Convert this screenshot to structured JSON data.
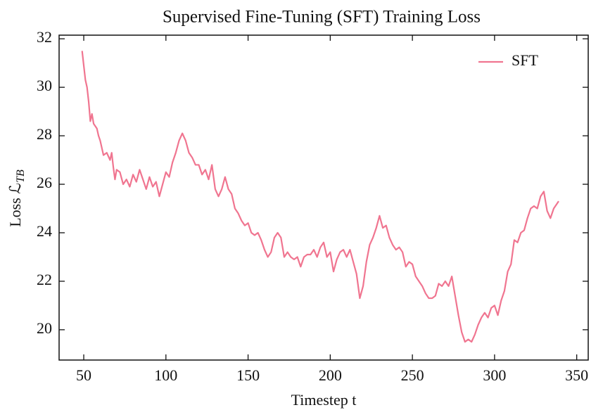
{
  "chart_data": {
    "type": "line",
    "title": "Supervised Fine-Tuning (SFT) Training Loss",
    "xlabel": "Timestep t",
    "ylabel": "Loss ℒ",
    "ylabel_subscript": "TB",
    "x": [
      49,
      50,
      51,
      52,
      53,
      54,
      55,
      56,
      58,
      59,
      60,
      61,
      62,
      64,
      66,
      67,
      68,
      69,
      70,
      72,
      74,
      76,
      78,
      80,
      82,
      84,
      86,
      88,
      90,
      92,
      94,
      96,
      98,
      100,
      102,
      104,
      106,
      108,
      110,
      112,
      114,
      116,
      118,
      120,
      122,
      124,
      126,
      128,
      130,
      132,
      134,
      136,
      138,
      140,
      142,
      144,
      146,
      148,
      150,
      152,
      154,
      156,
      158,
      160,
      162,
      164,
      166,
      168,
      170,
      172,
      174,
      176,
      178,
      180,
      182,
      184,
      186,
      188,
      190,
      192,
      194,
      196,
      198,
      200,
      202,
      204,
      206,
      208,
      210,
      212,
      214,
      216,
      218,
      220,
      222,
      224,
      226,
      228,
      230,
      232,
      234,
      236,
      238,
      240,
      242,
      244,
      246,
      248,
      250,
      252,
      254,
      256,
      258,
      260,
      262,
      264,
      266,
      268,
      270,
      272,
      274,
      276,
      278,
      280,
      282,
      284,
      286,
      288,
      290,
      292,
      294,
      296,
      298,
      300,
      302,
      304,
      306,
      308,
      310,
      312,
      314,
      316,
      318,
      320,
      322,
      324,
      326,
      328,
      330,
      332,
      334,
      336,
      338,
      339
    ],
    "series": [
      {
        "name": "SFT",
        "color": "#f07590",
        "values": [
          31.5,
          30.9,
          30.3,
          30.0,
          29.4,
          28.6,
          28.9,
          28.5,
          28.3,
          28.0,
          27.8,
          27.5,
          27.2,
          27.3,
          27.0,
          27.3,
          26.7,
          26.2,
          26.6,
          26.5,
          26.0,
          26.2,
          25.9,
          26.4,
          26.1,
          26.6,
          26.2,
          25.8,
          26.3,
          25.9,
          26.1,
          25.5,
          26.0,
          26.5,
          26.3,
          26.9,
          27.3,
          27.8,
          28.1,
          27.8,
          27.3,
          27.1,
          26.8,
          26.8,
          26.4,
          26.6,
          26.2,
          26.8,
          25.8,
          25.5,
          25.8,
          26.3,
          25.8,
          25.6,
          25.0,
          24.8,
          24.5,
          24.3,
          24.4,
          24.0,
          23.9,
          24.0,
          23.7,
          23.3,
          23.0,
          23.2,
          23.8,
          24.0,
          23.8,
          23.0,
          23.2,
          23.0,
          22.9,
          23.0,
          22.6,
          23.0,
          23.1,
          23.1,
          23.3,
          23.0,
          23.4,
          23.6,
          23.0,
          23.2,
          22.4,
          22.9,
          23.2,
          23.3,
          23.0,
          23.3,
          22.8,
          22.3,
          21.3,
          21.8,
          22.8,
          23.5,
          23.8,
          24.2,
          24.7,
          24.2,
          24.3,
          23.8,
          23.5,
          23.3,
          23.4,
          23.2,
          22.6,
          22.8,
          22.7,
          22.2,
          22.0,
          21.8,
          21.5,
          21.3,
          21.3,
          21.4,
          21.9,
          21.8,
          22.0,
          21.8,
          22.2,
          21.4,
          20.6,
          19.9,
          19.5,
          19.6,
          19.5,
          19.8,
          20.2,
          20.5,
          20.7,
          20.5,
          20.9,
          21.0,
          20.6,
          21.2,
          21.6,
          22.4,
          22.7,
          23.7,
          23.6,
          24.0,
          24.1,
          24.6,
          25.0,
          25.1,
          25.0,
          25.5,
          25.7,
          24.9,
          24.6,
          25.0,
          25.2,
          25.3
        ]
      }
    ],
    "xlim": [
      35,
      357
    ],
    "ylim": [
      18.75,
      32.15
    ],
    "xticks": [
      50,
      100,
      150,
      200,
      250,
      300,
      350
    ],
    "yticks": [
      20,
      22,
      24,
      26,
      28,
      30,
      32
    ],
    "legend": "upper right",
    "grid": false
  }
}
